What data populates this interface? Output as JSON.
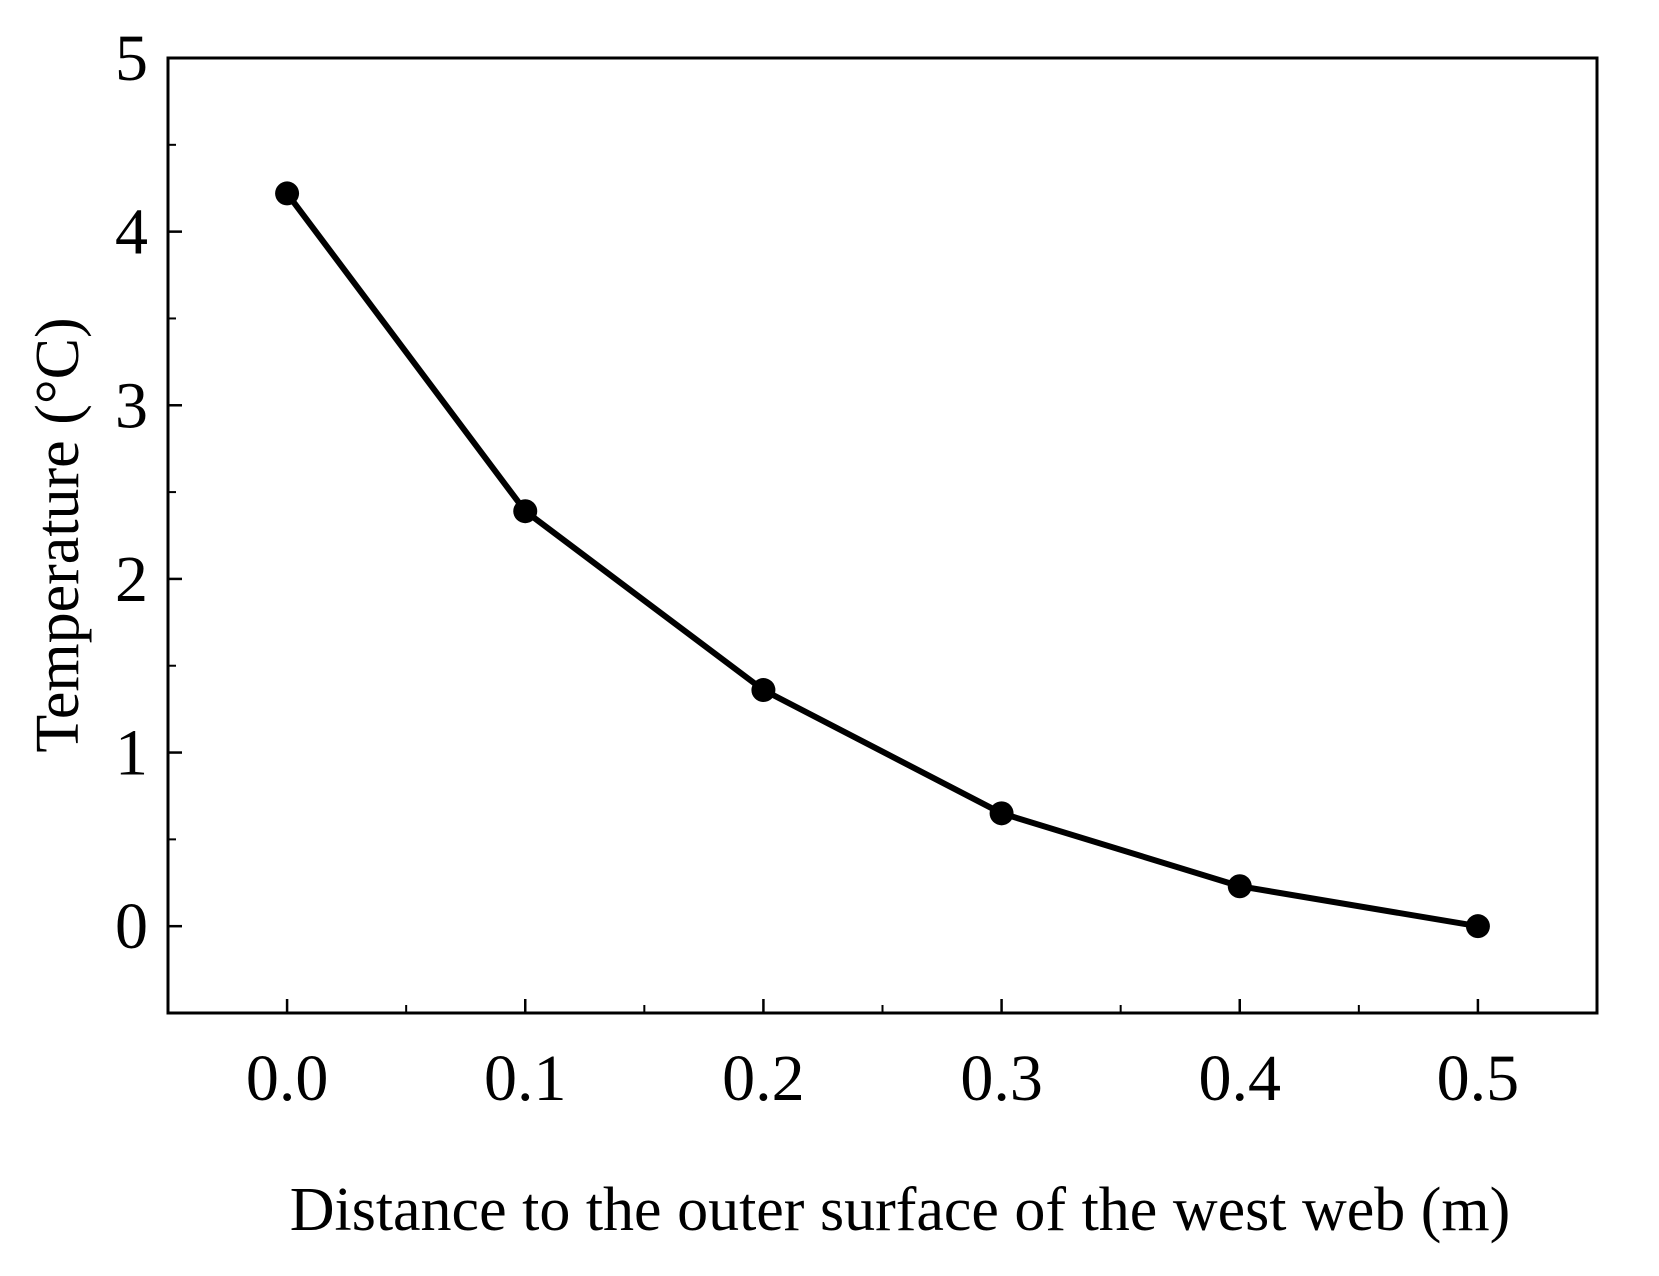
{
  "chart_data": {
    "type": "line",
    "title": "",
    "xlabel": "Distance to the outer surface of the west web (m)",
    "ylabel": "Temperature (°C)",
    "xlim": [
      -0.05,
      0.55
    ],
    "ylim": [
      -0.5,
      5
    ],
    "x_ticks": [
      0.0,
      0.1,
      0.2,
      0.3,
      0.4,
      0.5
    ],
    "x_tick_labels": [
      "0.0",
      "0.1",
      "0.2",
      "0.3",
      "0.4",
      "0.5"
    ],
    "x_minor_ticks": [
      0.05,
      0.15,
      0.25,
      0.35,
      0.45
    ],
    "y_ticks": [
      0,
      1,
      2,
      3,
      4,
      5
    ],
    "y_tick_labels": [
      "0",
      "1",
      "2",
      "3",
      "4",
      "5"
    ],
    "y_minor_ticks": [
      -0.5,
      0.5,
      1.5,
      2.5,
      3.5,
      4.5
    ],
    "grid": false,
    "series": [
      {
        "name": "Temperature",
        "color": "#000000",
        "marker": "circle",
        "x": [
          0.0,
          0.1,
          0.2,
          0.3,
          0.4,
          0.5
        ],
        "y": [
          4.22,
          2.39,
          1.36,
          0.65,
          0.23,
          0.0
        ]
      }
    ]
  }
}
